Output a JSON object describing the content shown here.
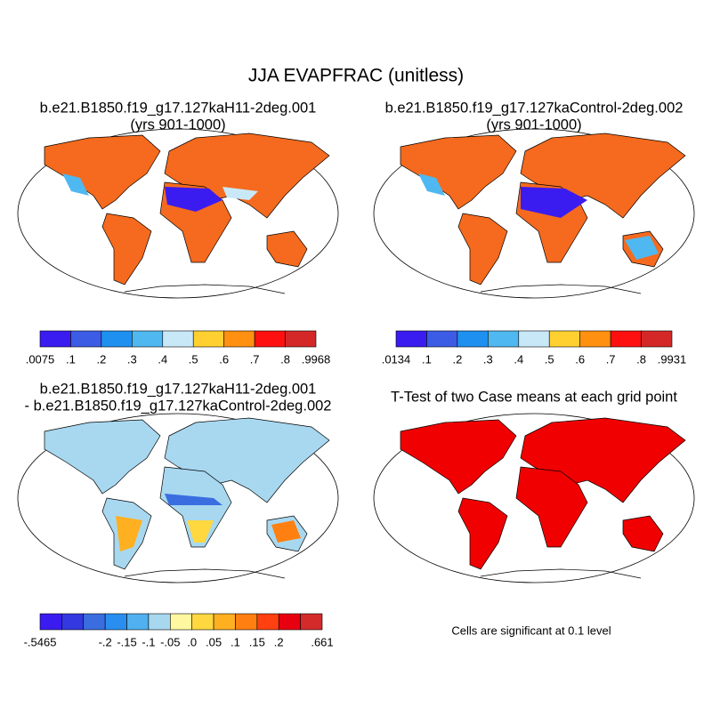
{
  "title": "JJA EVAPFRAC (unitless)",
  "panels": [
    {
      "title": "b.e21.B1850.f19_g17.127kaH11-2deg.001",
      "subtitle": "(yrs 901-1000)",
      "colorbar": {
        "colors": [
          "#3b1cf0",
          "#3c5ce6",
          "#1e90f0",
          "#50b8f0",
          "#c8e8f8",
          "#ffd030",
          "#ff9010",
          "#ff1010",
          "#d42828"
        ],
        "labels": [
          ".0075",
          ".1",
          ".2",
          ".3",
          ".4",
          ".5",
          ".6",
          ".7",
          ".8",
          ".9968"
        ]
      }
    },
    {
      "title": "b.e21.B1850.f19_g17.127kaControl-2deg.002",
      "subtitle": "(yrs 901-1000)",
      "colorbar": {
        "colors": [
          "#3b1cf0",
          "#3c5ce6",
          "#1e90f0",
          "#50b8f0",
          "#c8e8f8",
          "#ffd030",
          "#ff9010",
          "#ff1010",
          "#d42828"
        ],
        "labels": [
          ".0134",
          ".1",
          ".2",
          ".3",
          ".4",
          ".5",
          ".6",
          ".7",
          ".8",
          ".9931"
        ]
      }
    },
    {
      "title": "b.e21.B1850.f19_g17.127kaH11-2deg.001",
      "subtitle": "- b.e21.B1850.f19_g17.127kaControl-2deg.002",
      "colorbar": {
        "colors": [
          "#3a1cf0",
          "#3338e0",
          "#3a6ee0",
          "#2a8ef0",
          "#50b0f0",
          "#a8d8f0",
          "#fff8a0",
          "#ffd840",
          "#ffb020",
          "#ff8010",
          "#ff4010",
          "#e80010",
          "#d42a2a"
        ],
        "labels": [
          "-.5465",
          null,
          null,
          "-.2",
          "-.15",
          "-.1",
          "-.05",
          ".0",
          ".05",
          ".1",
          ".15",
          ".2",
          null,
          ".661"
        ]
      }
    },
    {
      "title": "T-Test of two Case means at each grid point"
    }
  ],
  "note": "Cells are significant at 0.1 level"
}
